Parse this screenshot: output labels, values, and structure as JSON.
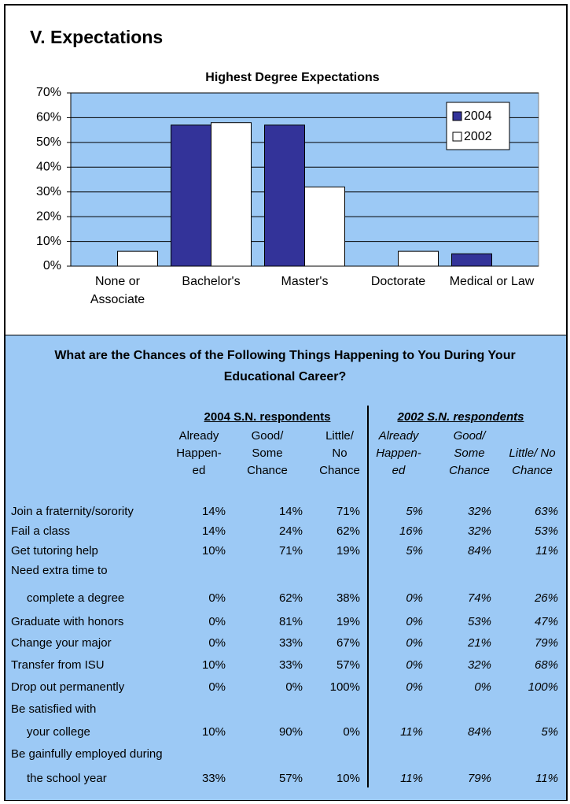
{
  "header": {
    "title": "V. Expectations"
  },
  "chart_data": {
    "type": "bar",
    "title": "Highest Degree Expectations",
    "categories": [
      "None or Associate",
      "Bachelor's",
      "Master's",
      "Doctorate",
      "Medical or Law"
    ],
    "series": [
      {
        "name": "2004",
        "color": "#333399",
        "values": [
          0,
          57,
          57,
          0,
          5
        ]
      },
      {
        "name": "2002",
        "color": "#ffffff",
        "values": [
          6,
          58,
          32,
          6,
          0
        ]
      }
    ],
    "ylim": [
      0,
      70
    ],
    "yticks": [
      {
        "value": 0,
        "label": "0%"
      },
      {
        "value": 10,
        "label": "10%"
      },
      {
        "value": 20,
        "label": "20%"
      },
      {
        "value": 30,
        "label": "30%"
      },
      {
        "value": 40,
        "label": "40%"
      },
      {
        "value": 50,
        "label": "50%"
      },
      {
        "value": 60,
        "label": "60%"
      },
      {
        "value": 70,
        "label": "70%"
      }
    ],
    "grid": true,
    "legend": "top-right",
    "background": "#9cc9f5"
  },
  "table": {
    "title": "What are the Chances of the Following Things Happening to You During Your Educational Career?",
    "groups": [
      {
        "title": "2004 S.N. respondents",
        "columns": [
          [
            "Already",
            "Happen-",
            "ed"
          ],
          [
            "Good/",
            "Some",
            "Chance"
          ],
          [
            "Little/",
            "No",
            "Chance"
          ]
        ]
      },
      {
        "title": "2002 S.N. respondents",
        "columns": [
          [
            "Already",
            "Happen-",
            "ed"
          ],
          [
            "Good/",
            "Some",
            "Chance"
          ],
          [
            "Little/ No",
            "Chance"
          ]
        ]
      }
    ],
    "rows": [
      {
        "label": [
          "Join a fraternity/sorority"
        ],
        "values": [
          "14%",
          "14%",
          "71%",
          "5%",
          "32%",
          "63%"
        ]
      },
      {
        "label": [
          "Fail a class"
        ],
        "values": [
          "14%",
          "24%",
          "62%",
          "16%",
          "32%",
          "53%"
        ]
      },
      {
        "label": [
          "Get tutoring help"
        ],
        "values": [
          "10%",
          "71%",
          "19%",
          "5%",
          "84%",
          "11%"
        ]
      },
      {
        "label": [
          "Need extra time to",
          "complete a degree"
        ],
        "values": [
          "0%",
          "62%",
          "38%",
          "0%",
          "74%",
          "26%"
        ]
      },
      {
        "label": [
          "Graduate with honors"
        ],
        "values": [
          "0%",
          "81%",
          "19%",
          "0%",
          "53%",
          "47%"
        ]
      },
      {
        "label": [
          "Change your major"
        ],
        "values": [
          "0%",
          "33%",
          "67%",
          "0%",
          "21%",
          "79%"
        ]
      },
      {
        "label": [
          "Transfer from ISU"
        ],
        "values": [
          "10%",
          "33%",
          "57%",
          "0%",
          "32%",
          "68%"
        ]
      },
      {
        "label": [
          "Drop out permanently"
        ],
        "values": [
          "0%",
          "0%",
          "100%",
          "0%",
          "0%",
          "100%"
        ]
      },
      {
        "label": [
          "Be satisfied with",
          "your college"
        ],
        "values": [
          "10%",
          "90%",
          "0%",
          "11%",
          "84%",
          "5%"
        ]
      },
      {
        "label": [
          "Be gainfully employed during",
          "the school year"
        ],
        "values": [
          "33%",
          "57%",
          "10%",
          "11%",
          "79%",
          "11%"
        ]
      }
    ]
  }
}
